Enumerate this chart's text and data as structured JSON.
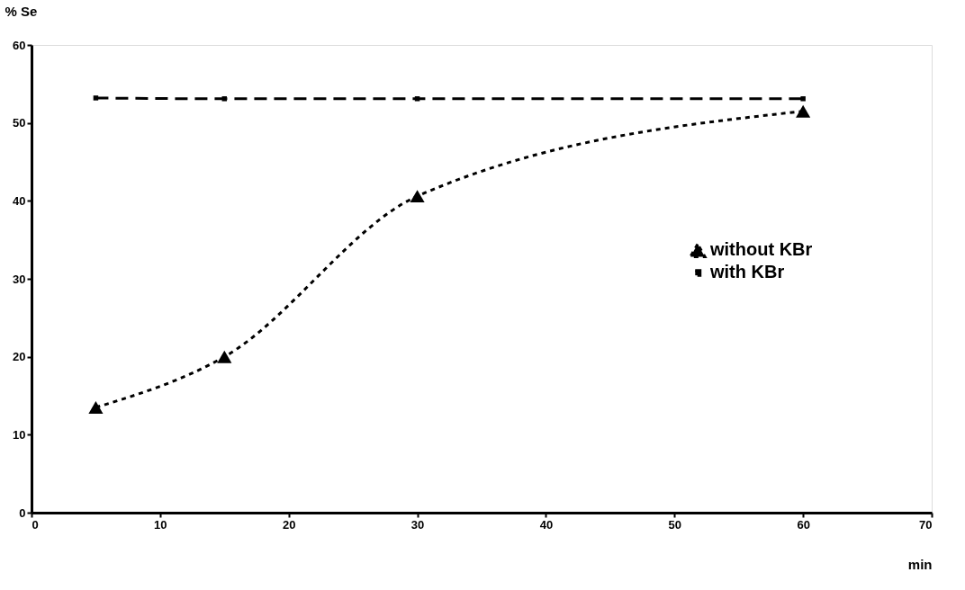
{
  "chart_data": {
    "type": "line",
    "xlabel": "min",
    "ylabel": "% Se",
    "x": [
      5,
      15,
      30,
      60
    ],
    "series": [
      {
        "name": "without KBr",
        "color": "#000000",
        "values": [
          13.5,
          20.0,
          40.6,
          51.5
        ],
        "marker": "triangle",
        "line_style": "dotted"
      },
      {
        "name": "with KBr",
        "color": "#000000",
        "values": [
          53.2,
          53.1,
          53.1,
          53.1
        ],
        "marker": "square",
        "line_style": "dashed"
      }
    ],
    "xlim": [
      0,
      70
    ],
    "xticks": [
      0,
      10,
      20,
      30,
      40,
      50,
      60,
      70
    ],
    "ylim": [
      0,
      60
    ],
    "yticks": [
      0,
      10,
      20,
      30,
      40,
      50,
      60
    ],
    "grid": false,
    "legend": "right"
  }
}
